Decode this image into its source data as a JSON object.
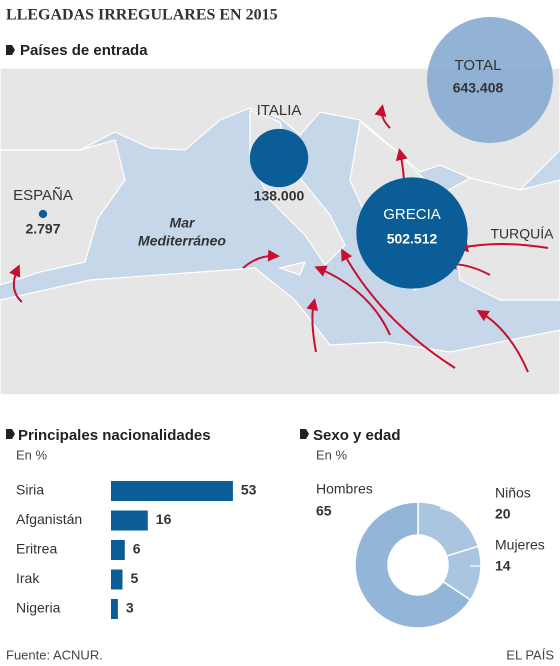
{
  "title": "LLEGADAS IRREGULARES EN 2015",
  "source": "Fuente: ACNUR.",
  "credit": "EL PAÍS",
  "chart_data": [
    {
      "type": "bubble",
      "title": "Países de entrada",
      "categories": [
        "ESPAÑA",
        "ITALIA",
        "GRECIA",
        "TOTAL"
      ],
      "values": [
        2797,
        138000,
        502512,
        643408
      ],
      "value_labels": [
        "2.797",
        "138.000",
        "502.512",
        "643.408"
      ],
      "colors": [
        "#0b5d97",
        "#0b5d97",
        "#0b5d97",
        "#86abd0"
      ],
      "annotations": [
        "Mar",
        "Mediterráneo",
        "TURQUÍA"
      ]
    },
    {
      "type": "hbar",
      "title": "Principales nacionalidades",
      "subtitle": "En %",
      "categories": [
        "Siria",
        "Afganistán",
        "Eritrea",
        "Irak",
        "Nigeria"
      ],
      "values": [
        53,
        16,
        6,
        5,
        3
      ],
      "color": "#0b5d97"
    },
    {
      "type": "donut",
      "title": "Sexo y edad",
      "subtitle": "En %",
      "categories": [
        "Niños",
        "Mujeres",
        "Hombres"
      ],
      "values": [
        20,
        14,
        65
      ],
      "colors": [
        "#a9c5e0",
        "#a9c5e0",
        "#93b6d8"
      ]
    }
  ]
}
